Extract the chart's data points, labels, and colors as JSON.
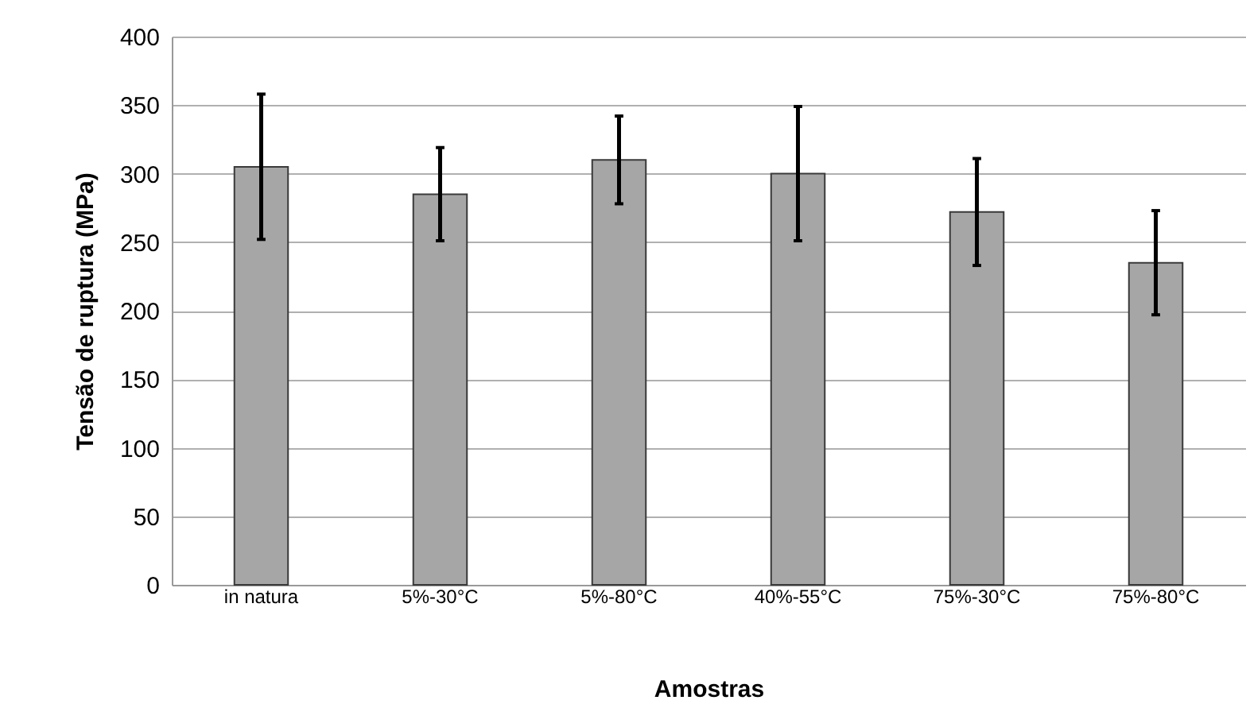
{
  "chart_data": {
    "type": "bar",
    "xlabel": "Amostras",
    "ylabel": "Tensão de ruptura (MPa)",
    "categories": [
      "in natura",
      "5%-30°C",
      "5%-80°C",
      "40%-55°C",
      "75%-30°C",
      "75%-80°C"
    ],
    "values": [
      305,
      285,
      310,
      300,
      272,
      235
    ],
    "errors": [
      53,
      34,
      32,
      49,
      39,
      38
    ],
    "color": "#a6a6a6",
    "ylim": [
      0,
      400
    ],
    "yticks": [
      0,
      50,
      100,
      150,
      200,
      250,
      300,
      350,
      400
    ],
    "grid": "y"
  }
}
